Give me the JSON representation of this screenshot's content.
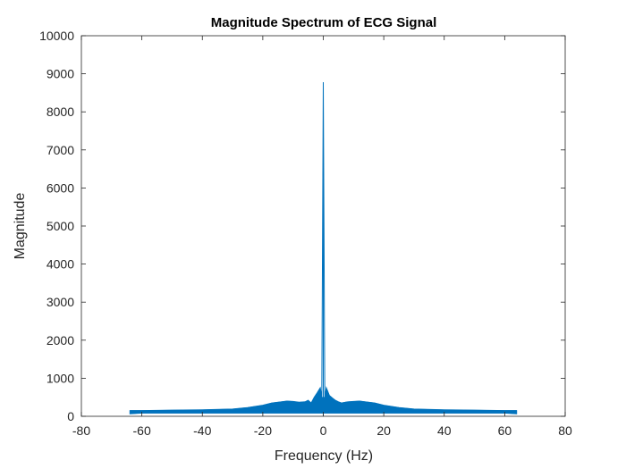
{
  "chart_data": {
    "type": "line",
    "title": "Magnitude Spectrum of  ECG Signal",
    "xlabel": "Frequency (Hz)",
    "ylabel": "Magnitude",
    "xlim": [
      -80,
      80
    ],
    "ylim": [
      0,
      10000
    ],
    "xticks": [
      -80,
      -60,
      -40,
      -20,
      0,
      20,
      40,
      60,
      80
    ],
    "yticks": [
      0,
      1000,
      2000,
      3000,
      4000,
      5000,
      6000,
      7000,
      8000,
      9000,
      10000
    ],
    "grid": false,
    "box": true,
    "series": [
      {
        "color": "#0072BD",
        "x": [
          -64,
          -60,
          -50,
          -40,
          -30,
          -25,
          -20,
          -17,
          -14,
          -12,
          -10,
          -8,
          -6,
          -5,
          -4,
          -3,
          -2,
          -1,
          -0.5,
          0,
          0.5,
          1,
          2,
          3,
          4,
          5,
          6,
          8,
          10,
          12,
          14,
          17,
          20,
          25,
          30,
          40,
          50,
          60,
          64
        ],
        "y": [
          150,
          150,
          160,
          170,
          190,
          230,
          290,
          350,
          380,
          400,
          390,
          370,
          380,
          420,
          350,
          500,
          620,
          750,
          500,
          8780,
          500,
          750,
          550,
          480,
          420,
          380,
          350,
          380,
          390,
          400,
          380,
          350,
          290,
          230,
          190,
          170,
          160,
          150,
          150
        ],
        "envelope_low": [
          60,
          80,
          80,
          80,
          80,
          80,
          80,
          80,
          80,
          80,
          80,
          80,
          80,
          80,
          80,
          80,
          80,
          80,
          80,
          0,
          80,
          80,
          80,
          80,
          80,
          80,
          80,
          80,
          80,
          80,
          80,
          80,
          80,
          80,
          80,
          80,
          80,
          80,
          60
        ]
      }
    ]
  }
}
